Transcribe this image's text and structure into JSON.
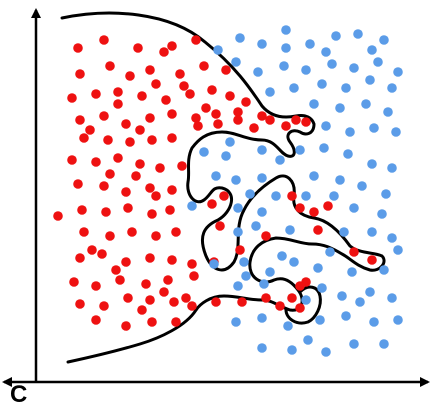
{
  "colors": {
    "class_a": "#ee1111",
    "class_b": "#5b9ce8",
    "boundary": "#000000",
    "axis": "#000000",
    "background": "#ffffff"
  },
  "axes": {
    "corner_label": "C"
  },
  "diagram": {
    "description_kind": "overfit decision boundary scatter",
    "class_a_count": 126,
    "class_b_count": 97
  }
}
